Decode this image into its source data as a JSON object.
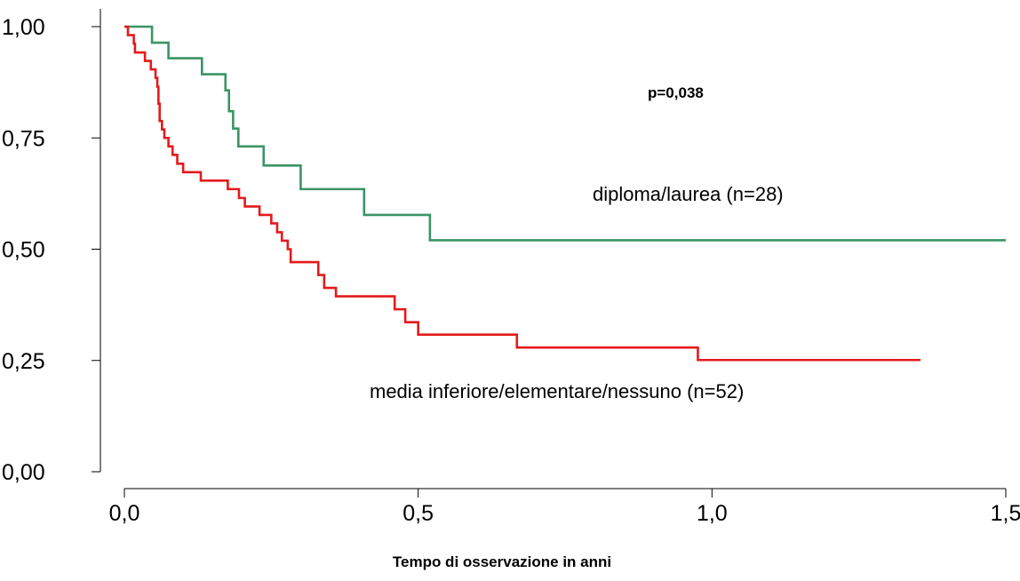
{
  "chart_data": {
    "type": "line",
    "step": true,
    "xlabel": "Tempo di osservazione in anni",
    "ylabel": "",
    "xlim": [
      0,
      1.5
    ],
    "ylim": [
      0,
      1
    ],
    "x_ticks": [
      {
        "value": 0,
        "label": "0,0"
      },
      {
        "value": 0.5,
        "label": "0,5"
      },
      {
        "value": 1,
        "label": "1,0"
      },
      {
        "value": 1.5,
        "label": "1,5"
      }
    ],
    "y_ticks": [
      {
        "value": 0,
        "label": "0,00"
      },
      {
        "value": 0.25,
        "label": "0,25"
      },
      {
        "value": 0.5,
        "label": "0,50"
      },
      {
        "value": 0.75,
        "label": "0,75"
      },
      {
        "value": 1,
        "label": "1,00"
      }
    ],
    "grid": false,
    "annotations": {
      "p_value": "p=0,038"
    },
    "series": [
      {
        "name": "diploma/laurea (n=28)",
        "color": "#3a9466",
        "points": [
          [
            0,
            1.0
          ],
          [
            0.047,
            0.964
          ],
          [
            0.075,
            0.929
          ],
          [
            0.132,
            0.893
          ],
          [
            0.172,
            0.857
          ],
          [
            0.178,
            0.81
          ],
          [
            0.185,
            0.771
          ],
          [
            0.194,
            0.731
          ],
          [
            0.237,
            0.688
          ],
          [
            0.3,
            0.635
          ],
          [
            0.408,
            0.577
          ],
          [
            0.52,
            0.52
          ],
          [
            1.5,
            0.52
          ]
        ]
      },
      {
        "name": "media inferiore/elementare/nessuno (n=52)",
        "color": "#e41a1c",
        "points": [
          [
            0,
            1.0
          ],
          [
            0.006,
            0.981
          ],
          [
            0.016,
            0.962
          ],
          [
            0.018,
            0.942
          ],
          [
            0.035,
            0.923
          ],
          [
            0.045,
            0.904
          ],
          [
            0.053,
            0.885
          ],
          [
            0.056,
            0.865
          ],
          [
            0.058,
            0.827
          ],
          [
            0.06,
            0.788
          ],
          [
            0.064,
            0.769
          ],
          [
            0.068,
            0.75
          ],
          [
            0.075,
            0.731
          ],
          [
            0.082,
            0.712
          ],
          [
            0.09,
            0.692
          ],
          [
            0.1,
            0.673
          ],
          [
            0.13,
            0.654
          ],
          [
            0.176,
            0.635
          ],
          [
            0.195,
            0.615
          ],
          [
            0.205,
            0.596
          ],
          [
            0.23,
            0.577
          ],
          [
            0.25,
            0.558
          ],
          [
            0.26,
            0.538
          ],
          [
            0.268,
            0.519
          ],
          [
            0.278,
            0.5
          ],
          [
            0.283,
            0.471
          ],
          [
            0.33,
            0.442
          ],
          [
            0.34,
            0.413
          ],
          [
            0.36,
            0.394
          ],
          [
            0.46,
            0.365
          ],
          [
            0.478,
            0.336
          ],
          [
            0.5,
            0.308
          ],
          [
            0.668,
            0.279
          ],
          [
            0.976,
            0.251
          ],
          [
            1.355,
            0.251
          ]
        ]
      }
    ]
  }
}
